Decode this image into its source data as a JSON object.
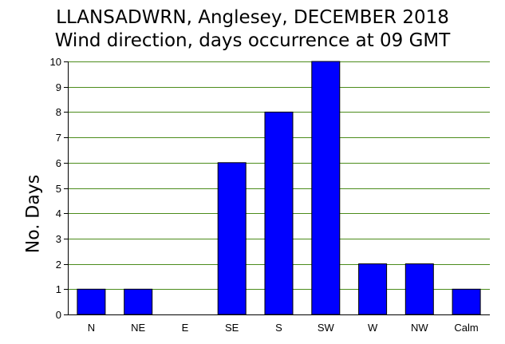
{
  "chart_data": {
    "type": "bar",
    "title": "LLANSADWRN, Anglesey, DECEMBER 2018",
    "subtitle": "Wind direction, days occurrence at 09 GMT",
    "xlabel": "",
    "ylabel": "No. Days",
    "categories": [
      "N",
      "NE",
      "E",
      "SE",
      "S",
      "SW",
      "W",
      "NW",
      "Calm"
    ],
    "values": [
      1,
      1,
      0,
      6,
      8,
      10,
      2,
      2,
      1
    ],
    "ylim": [
      0,
      10
    ],
    "yticks": [
      0,
      1,
      2,
      3,
      4,
      5,
      6,
      7,
      8,
      9,
      10
    ],
    "grid": true,
    "bar_color": "#0000ff",
    "grid_color": "#4c8c1c",
    "legend": "none"
  }
}
